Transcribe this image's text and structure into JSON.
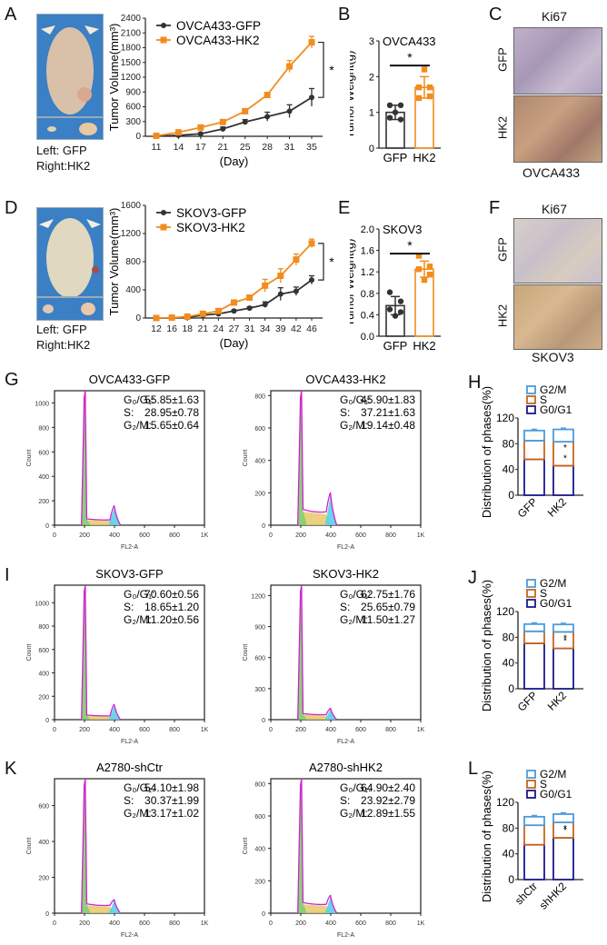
{
  "panels": {
    "A": {
      "label": "A",
      "photo_caption_left": "Left: GFP",
      "photo_caption_right": "Right:HK2"
    },
    "D": {
      "label": "D",
      "photo_caption_left": "Left: GFP",
      "photo_caption_right": "Right:HK2"
    },
    "B": {
      "label": "B"
    },
    "C": {
      "label": "C",
      "title": "Ki67",
      "row_labels": [
        "GFP",
        "HK2"
      ],
      "caption": "OVCA433"
    },
    "E": {
      "label": "E"
    },
    "F": {
      "label": "F",
      "title": "Ki67",
      "row_labels": [
        "GFP",
        "HK2"
      ],
      "caption": "SKOV3"
    },
    "G": {
      "label": "G"
    },
    "H": {
      "label": "H"
    },
    "I": {
      "label": "I"
    },
    "J": {
      "label": "J"
    },
    "K": {
      "label": "K"
    },
    "L": {
      "label": "L"
    }
  },
  "colors": {
    "gfp": "#333333",
    "hk2": "#f28c1e",
    "g2m": "#4a9be0",
    "s": "#c8641e",
    "g0g1": "#1a1a8c",
    "hist_g1": "#7ccd6a",
    "hist_s": "#e6c96a",
    "hist_g2": "#5ccfe6",
    "hist_line": "#d020d0"
  },
  "chart_data": [
    {
      "id": "A",
      "type": "line",
      "title": "",
      "xlabel": "(Day)",
      "ylabel": "Tumor Volume(mm³)",
      "x": [
        11,
        14,
        17,
        21,
        25,
        28,
        31,
        35
      ],
      "yticks": [
        0,
        300,
        600,
        900,
        1200,
        1500,
        1800,
        2100,
        2400
      ],
      "ylim": [
        0,
        2400
      ],
      "legend": "top-left",
      "significance": "*",
      "series": [
        {
          "name": "OVCA433-GFP",
          "values": [
            5,
            20,
            50,
            150,
            290,
            400,
            510,
            790
          ],
          "errors": [
            5,
            10,
            20,
            40,
            50,
            90,
            130,
            180
          ]
        },
        {
          "name": "OVCA433-HK2",
          "values": [
            10,
            80,
            180,
            290,
            510,
            840,
            1420,
            1910
          ],
          "errors": [
            5,
            15,
            20,
            40,
            40,
            50,
            120,
            120
          ]
        }
      ]
    },
    {
      "id": "B",
      "type": "bar",
      "title": "OVCA433",
      "ylabel": "Tumor Weight(g)",
      "categories": [
        "GFP",
        "HK2"
      ],
      "values": [
        1.0,
        1.7
      ],
      "errors": [
        0.2,
        0.3
      ],
      "points": [
        [
          0.85,
          1.2,
          1.2,
          0.8,
          1.0
        ],
        [
          1.4,
          1.7,
          1.7,
          1.45,
          2.2
        ]
      ],
      "yticks": [
        0,
        1,
        2,
        3
      ],
      "ylim": [
        0,
        3
      ],
      "significance": "*"
    },
    {
      "id": "D",
      "type": "line",
      "xlabel": "(Day)",
      "ylabel": "Tumor Volume(mm³)",
      "x": [
        12,
        16,
        18,
        21,
        24,
        27,
        31,
        34,
        39,
        42,
        46
      ],
      "yticks": [
        0,
        400,
        800,
        1200,
        1600
      ],
      "ylim": [
        0,
        1600
      ],
      "legend": "top-left",
      "significance": "*",
      "series": [
        {
          "name": "SKOV3-GFP",
          "values": [
            0,
            0,
            10,
            40,
            60,
            100,
            140,
            190,
            340,
            380,
            540
          ],
          "errors": [
            0,
            0,
            5,
            10,
            15,
            15,
            20,
            40,
            90,
            60,
            60
          ]
        },
        {
          "name": "SKOV3-HK2",
          "values": [
            0,
            5,
            20,
            60,
            100,
            220,
            290,
            460,
            600,
            830,
            1060
          ],
          "errors": [
            0,
            5,
            10,
            15,
            20,
            30,
            30,
            90,
            100,
            80,
            60
          ]
        }
      ]
    },
    {
      "id": "E",
      "type": "bar",
      "title": "SKOV3",
      "ylabel": "Tumor Weight(g)",
      "categories": [
        "GFP",
        "HK2"
      ],
      "values": [
        0.57,
        1.25
      ],
      "errors": [
        0.17,
        0.15
      ],
      "points": [
        [
          0.82,
          0.65,
          0.5,
          0.45,
          0.38
        ],
        [
          1.5,
          1.3,
          1.25,
          1.15,
          1.05
        ]
      ],
      "yticks": [
        0.0,
        0.4,
        0.8,
        1.2,
        1.6,
        2.0
      ],
      "ylim": [
        0,
        2.0
      ],
      "significance": "*"
    },
    {
      "id": "G1",
      "type": "area",
      "title": "OVCA433-GFP",
      "xlabel": "FL2-A",
      "ylabel": "Count",
      "xticks": [
        "0",
        "200",
        "400",
        "600",
        "800",
        "1K"
      ],
      "yticks": [
        0,
        200,
        400,
        600,
        800,
        1000
      ],
      "ylim": [
        0,
        1100
      ],
      "g1_peak": 1100,
      "g2_peak": 160,
      "s_level": 40,
      "stats": [
        {
          "phase": "G0/G1",
          "value": "55.85±1.63"
        },
        {
          "phase": "S",
          "value": "28.95±0.78"
        },
        {
          "phase": "G2/M",
          "value": "15.65±0.64"
        }
      ]
    },
    {
      "id": "G2",
      "type": "area",
      "title": "OVCA433-HK2",
      "xlabel": "FL2-A",
      "ylabel": "Count",
      "xticks": [
        "0",
        "200",
        "400",
        "600",
        "800",
        "1K"
      ],
      "yticks": [
        0,
        200,
        400,
        600,
        800
      ],
      "ylim": [
        0,
        830
      ],
      "g1_peak": 830,
      "g2_peak": 200,
      "s_level": 75,
      "stats": [
        {
          "phase": "G0/G1",
          "value": "45.90±1.83"
        },
        {
          "phase": "S",
          "value": "37.21±1.63"
        },
        {
          "phase": "G2/M",
          "value": "19.14±0.48"
        }
      ]
    },
    {
      "id": "I1",
      "type": "area",
      "title": "SKOV3-GFP",
      "xlabel": "FL2-A",
      "ylabel": "Count",
      "xticks": [
        "0",
        "200",
        "400",
        "600",
        "800",
        "1K"
      ],
      "yticks": [
        0,
        200,
        400,
        600,
        800,
        1000
      ],
      "ylim": [
        0,
        1150
      ],
      "g1_peak": 1150,
      "g2_peak": 130,
      "s_level": 30,
      "stats": [
        {
          "phase": "G0/G1",
          "value": "70.60±0.56"
        },
        {
          "phase": "S",
          "value": "18.65±1.20"
        },
        {
          "phase": "G2/M",
          "value": "11.20±0.56"
        }
      ]
    },
    {
      "id": "I2",
      "type": "area",
      "title": "SKOV3-HK2",
      "xlabel": "FL2-A",
      "ylabel": "Count",
      "xticks": [
        "0",
        "200",
        "400",
        "600",
        "800",
        "1K"
      ],
      "yticks": [
        0,
        300,
        600,
        900,
        1200
      ],
      "ylim": [
        0,
        1300
      ],
      "g1_peak": 1300,
      "g2_peak": 110,
      "s_level": 45,
      "stats": [
        {
          "phase": "G0/G1",
          "value": "62.75±1.76"
        },
        {
          "phase": "S",
          "value": "25.65±0.79"
        },
        {
          "phase": "G2/M",
          "value": "11.50±1.27"
        }
      ]
    },
    {
      "id": "K1",
      "type": "area",
      "title": "A2780-shCtr",
      "xlabel": "FL2-A",
      "ylabel": "Count",
      "xticks": [
        "0",
        "200",
        "400",
        "600",
        "800",
        "1K"
      ],
      "yticks": [
        0,
        200,
        400,
        600
      ],
      "ylim": [
        0,
        750
      ],
      "g1_peak": 750,
      "g2_peak": 75,
      "s_level": 40,
      "stats": [
        {
          "phase": "G0/G1",
          "value": "54.10±1.98"
        },
        {
          "phase": "S",
          "value": "30.37±1.99"
        },
        {
          "phase": "G2/M",
          "value": "13.17±1.02"
        }
      ]
    },
    {
      "id": "K2",
      "type": "area",
      "title": "A2780-shHK2",
      "xlabel": "FL2-A",
      "ylabel": "Count",
      "xticks": [
        "0",
        "200",
        "400",
        "600",
        "800",
        "1K"
      ],
      "yticks": [
        0,
        200,
        400,
        600,
        800
      ],
      "ylim": [
        0,
        830
      ],
      "g1_peak": 830,
      "g2_peak": 110,
      "s_level": 50,
      "stats": [
        {
          "phase": "G0/G1",
          "value": "64.90±2.40"
        },
        {
          "phase": "S",
          "value": "23.92±2.79"
        },
        {
          "phase": "G2/M",
          "value": "12.89±1.55"
        }
      ]
    },
    {
      "id": "H",
      "type": "bar",
      "stacked": true,
      "ylabel": "Distribution of phases(%)",
      "categories": [
        "GFP",
        "HK2"
      ],
      "yticks": [
        0,
        40,
        80,
        120
      ],
      "ylim": [
        0,
        120
      ],
      "legend": [
        "G2/M",
        "S",
        "G0/G1"
      ],
      "series": [
        {
          "name": "G0/G1",
          "values": [
            55.85,
            45.9
          ]
        },
        {
          "name": "S",
          "values": [
            28.95,
            37.21
          ]
        },
        {
          "name": "G2/M",
          "values": [
            15.65,
            19.14
          ]
        }
      ],
      "significance": [
        "",
        "*"
      ]
    },
    {
      "id": "J",
      "type": "bar",
      "stacked": true,
      "ylabel": "Distribution of phases(%)",
      "categories": [
        "GFP",
        "HK2"
      ],
      "yticks": [
        0,
        40,
        80,
        120
      ],
      "ylim": [
        0,
        120
      ],
      "legend": [
        "G2/M",
        "S",
        "G0/G1"
      ],
      "series": [
        {
          "name": "G0/G1",
          "values": [
            70.6,
            62.75
          ]
        },
        {
          "name": "S",
          "values": [
            18.65,
            25.65
          ]
        },
        {
          "name": "G2/M",
          "values": [
            11.2,
            11.5
          ]
        }
      ],
      "significance": [
        "",
        "*"
      ]
    },
    {
      "id": "L",
      "type": "bar",
      "stacked": true,
      "ylabel": "Distribution of phases(%)",
      "categories": [
        "shCtr",
        "shHK2"
      ],
      "yticks": [
        0,
        40,
        80,
        120
      ],
      "ylim": [
        0,
        120
      ],
      "legend": [
        "G2/M",
        "S",
        "G0/G1"
      ],
      "series": [
        {
          "name": "G0/G1",
          "values": [
            54.1,
            64.9
          ]
        },
        {
          "name": "S",
          "values": [
            30.37,
            23.92
          ]
        },
        {
          "name": "G2/M",
          "values": [
            13.17,
            12.89
          ]
        }
      ],
      "significance": [
        "",
        "*"
      ]
    }
  ]
}
